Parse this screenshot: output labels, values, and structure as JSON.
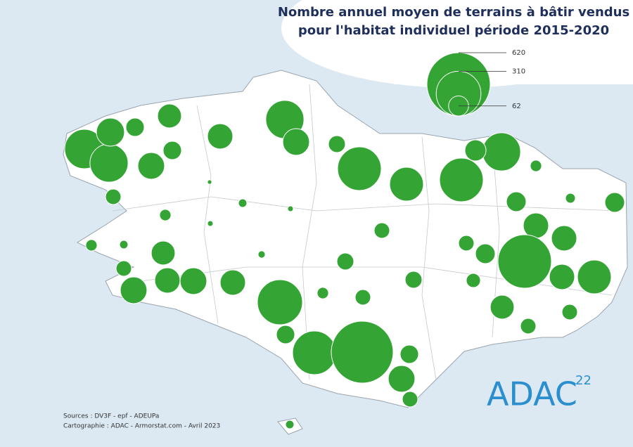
{
  "header": {
    "title_line1": "Nombre annuel moyen de terrains à bâtir vendus",
    "title_line2": "pour l'habitat individuel période 2015-2020"
  },
  "legend": {
    "values": [
      620,
      310,
      62
    ]
  },
  "circles": {
    "color": "#34a434",
    "values": [
      240,
      225,
      122,
      52,
      88,
      110,
      52,
      99,
      225,
      110,
      44,
      294,
      176,
      294,
      225,
      69,
      20,
      3,
      37,
      20,
      11,
      5,
      5,
      37,
      60,
      15,
      60,
      99,
      99,
      37,
      60,
      442,
      99,
      176,
      20,
      11,
      88,
      8,
      44,
      37,
      110,
      99,
      110,
      99,
      314,
      20,
      37,
      44,
      31,
      88,
      37,
      37,
      52,
      294,
      593,
      52,
      110,
      37,
      11
    ]
  },
  "footer": {
    "sources": "Sources : DV3F - epf - ADEUPa",
    "credit": "Cartographie : ADAC - Armorstat.com - Avril 2023"
  },
  "logo": {
    "text": "ADAC",
    "number": "22"
  }
}
